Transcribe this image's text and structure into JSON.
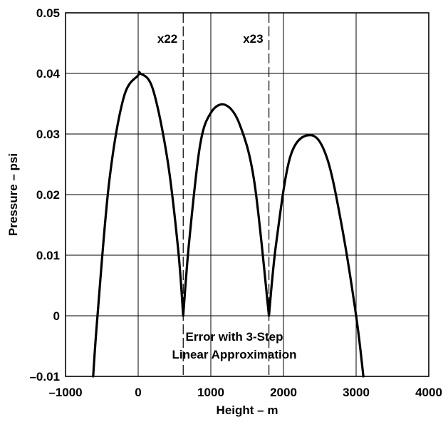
{
  "chart_data": {
    "type": "line",
    "title": "",
    "xlabel": "Height – m",
    "ylabel": "Pressure – psi",
    "xlim": [
      -1000,
      4000
    ],
    "ylim": [
      -0.01,
      0.05
    ],
    "x_ticks": [
      -1000,
      0,
      1000,
      2000,
      3000,
      4000
    ],
    "x_tick_labels": [
      "–1000",
      "0",
      "1000",
      "2000",
      "3000",
      "4000"
    ],
    "y_ticks": [
      -0.01,
      0,
      0.01,
      0.02,
      0.03,
      0.04,
      0.05
    ],
    "y_tick_labels": [
      "–0.01",
      "0",
      "0.01",
      "0.02",
      "0.03",
      "0.04",
      "0.05"
    ],
    "grid": true,
    "series": [
      {
        "points": [
          {
            "x": -620,
            "y": -0.01
          },
          {
            "x": -560,
            "y": 0.0
          },
          {
            "x": -400,
            "y": 0.022
          },
          {
            "x": -200,
            "y": 0.036
          },
          {
            "x": 0,
            "y": 0.0397
          },
          {
            "x": 30,
            "y": 0.04
          },
          {
            "x": 200,
            "y": 0.0375
          },
          {
            "x": 400,
            "y": 0.026
          },
          {
            "x": 550,
            "y": 0.011
          },
          {
            "x": 620,
            "y": 0.0
          },
          {
            "x": 700,
            "y": 0.012
          },
          {
            "x": 850,
            "y": 0.028
          },
          {
            "x": 1000,
            "y": 0.0335
          },
          {
            "x": 1200,
            "y": 0.0348
          },
          {
            "x": 1400,
            "y": 0.0315
          },
          {
            "x": 1600,
            "y": 0.022
          },
          {
            "x": 1800,
            "y": 0.0
          },
          {
            "x": 1900,
            "y": 0.012
          },
          {
            "x": 2100,
            "y": 0.0265
          },
          {
            "x": 2380,
            "y": 0.0298
          },
          {
            "x": 2600,
            "y": 0.026
          },
          {
            "x": 2800,
            "y": 0.015
          },
          {
            "x": 3000,
            "y": 0.0
          },
          {
            "x": 3100,
            "y": -0.01
          }
        ]
      }
    ],
    "step_markers": [
      {
        "label": "x22",
        "x": 620
      },
      {
        "label": "x23",
        "x": 1800
      }
    ],
    "annotation": {
      "line1": "Error with 3-Step",
      "line2": "Linear Approximation"
    }
  }
}
